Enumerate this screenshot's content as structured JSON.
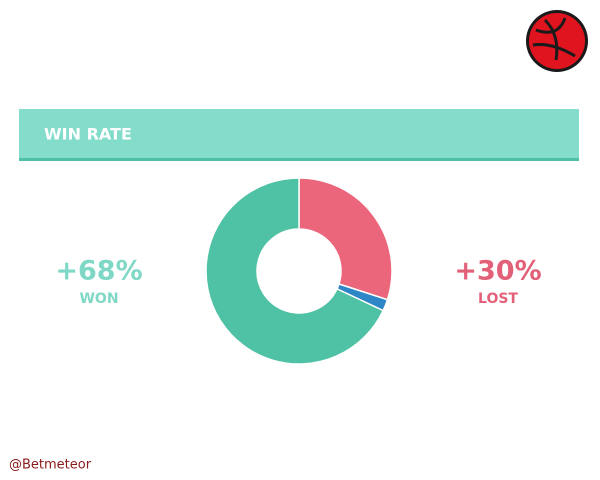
{
  "header": {
    "title": "WIN RATE"
  },
  "chart_data": {
    "type": "pie",
    "donut": true,
    "categories": [
      "LOST",
      null,
      "WON"
    ],
    "values": [
      30,
      2,
      68
    ],
    "value_labels": [
      "+30%",
      null,
      "+68%"
    ],
    "colors": [
      "#ec667b",
      "#2f86c6",
      "#4fc1a4"
    ]
  },
  "footer": {
    "credit": "@Betmeteor"
  }
}
